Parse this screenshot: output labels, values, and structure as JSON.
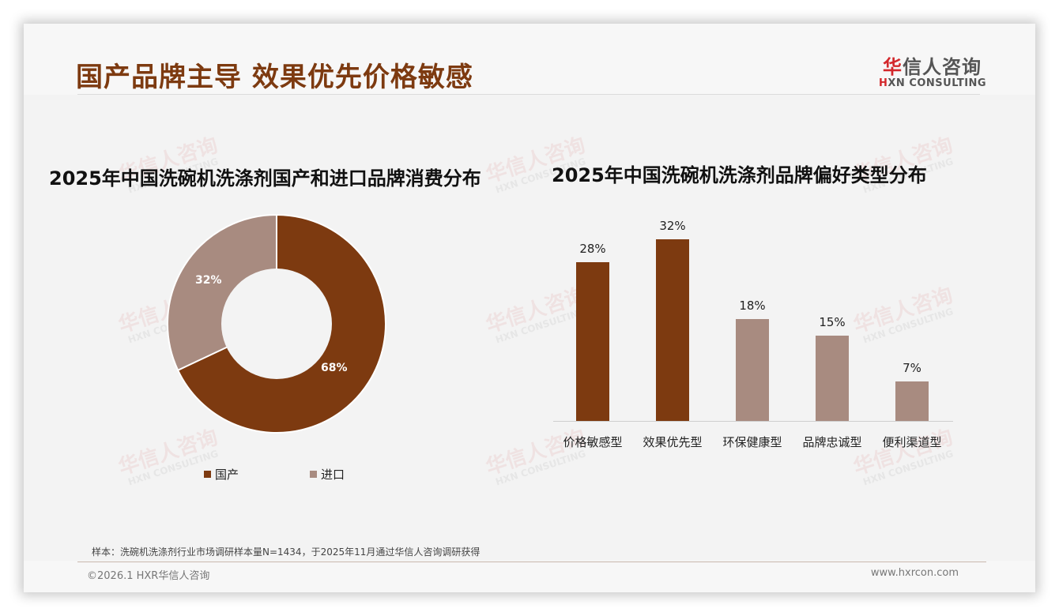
{
  "header": {
    "title": "国产品牌主导 效果优先价格敏感",
    "logo_cn_first": "华",
    "logo_cn_rest": "信人咨询",
    "logo_en_first": "H",
    "logo_en_rest": "XN CONSULTING"
  },
  "watermark": {
    "cn": "华信人咨询",
    "en": "HXN CONSULTING"
  },
  "colors": {
    "primary": "#7d3a10",
    "secondary": "#a88b80",
    "accent_red": "#d3272b"
  },
  "chart_data": [
    {
      "type": "pie",
      "subtype": "donut",
      "title": "2025年中国洗碗机洗涤剂国产和进口品牌消费分布",
      "categories": [
        "国产",
        "进口"
      ],
      "values": [
        68,
        32
      ],
      "labels": [
        "68%",
        "32%"
      ],
      "colors": [
        "#7d3a10",
        "#a88b80"
      ],
      "legend_position": "bottom"
    },
    {
      "type": "bar",
      "title": "2025年中国洗碗机洗涤剂品牌偏好类型分布",
      "categories": [
        "价格敏感型",
        "效果优先型",
        "环保健康型",
        "品牌忠诚型",
        "便利渠道型"
      ],
      "values": [
        28,
        32,
        18,
        15,
        7
      ],
      "labels": [
        "28%",
        "32%",
        "18%",
        "15%",
        "7%"
      ],
      "colors": [
        "#7d3a10",
        "#7d3a10",
        "#a88b80",
        "#a88b80",
        "#a88b80"
      ],
      "xlabel": "",
      "ylabel": "",
      "ylim": [
        0,
        35
      ],
      "grid": false
    }
  ],
  "legend": {
    "items": [
      {
        "label": "国产"
      },
      {
        "label": "进口"
      }
    ]
  },
  "footer": {
    "note": "样本：洗碗机洗涤剂行业市场调研样本量N=1434，于2025年11月通过华信人咨询调研获得",
    "copyright": "©2026.1 HXR华信人咨询",
    "website": "www.hxrcon.com"
  }
}
